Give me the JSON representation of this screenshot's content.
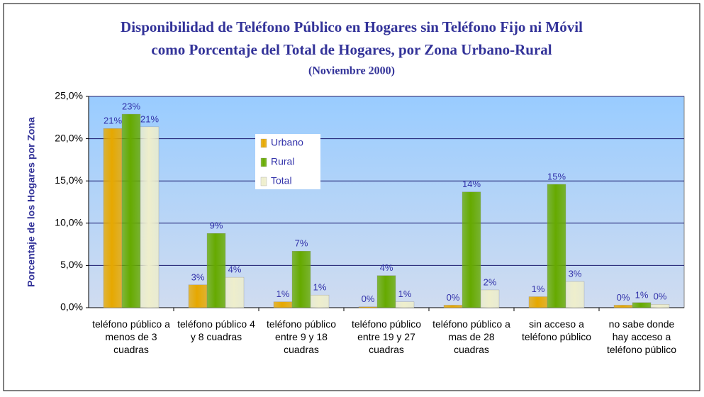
{
  "chart_data": {
    "type": "bar",
    "title": [
      "Disponibilidad de Teléfono Público en Hogares sin Teléfono Fijo ni Móvil",
      "como Porcentaje del Total de Hogares, por Zona Urbano-Rural"
    ],
    "subtitle": "(Noviembre 2000)",
    "y_label": "Porcentaje de los Hogares por Zona",
    "categories": [
      "teléfono público a menos de 3 cuadras",
      "teléfono público 4 y 8 cuadras",
      "teléfono público entre 9 y 18 cuadras",
      "teléfono público entre 19 y 27 cuadras",
      "teléfono público a mas de 28 cuadras",
      "sin acceso a teléfono público",
      "no sabe donde hay acceso a teléfono público"
    ],
    "series": [
      {
        "name": "Urbano",
        "color": "#e6a800",
        "values": [
          21.2,
          2.7,
          0.7,
          0.1,
          0.3,
          1.3,
          0.3
        ],
        "value_labels": [
          "21%",
          "3%",
          "1%",
          "0%",
          "0%",
          "1%",
          "0%"
        ]
      },
      {
        "name": "Rural",
        "color": "#66aa00",
        "values": [
          22.9,
          8.8,
          6.7,
          3.8,
          13.7,
          14.6,
          0.6
        ],
        "value_labels": [
          "23%",
          "9%",
          "7%",
          "4%",
          "14%",
          "15%",
          "1%"
        ]
      },
      {
        "name": "Total",
        "color": "#eeeecc",
        "values": [
          21.4,
          3.6,
          1.5,
          0.7,
          2.1,
          3.1,
          0.4
        ],
        "value_labels": [
          "21%",
          "4%",
          "1%",
          "1%",
          "2%",
          "3%",
          "0%"
        ]
      }
    ],
    "ylim": [
      0,
      25
    ],
    "yticks": [
      {
        "value": 0,
        "label": "0,0%"
      },
      {
        "value": 5,
        "label": "5,0%"
      },
      {
        "value": 10,
        "label": "10,0%"
      },
      {
        "value": 15,
        "label": "15,0%"
      },
      {
        "value": 20,
        "label": "20,0%"
      },
      {
        "value": 25,
        "label": "25,0%"
      }
    ],
    "grid": true,
    "legend": "upper-center"
  }
}
